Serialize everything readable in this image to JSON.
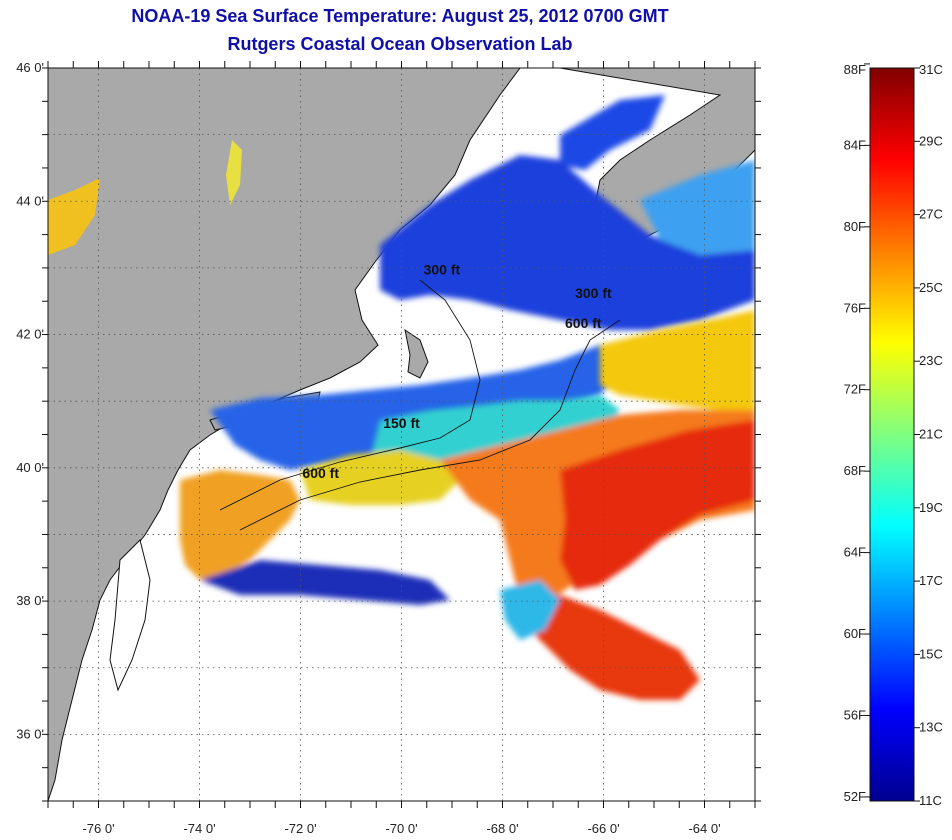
{
  "header": {
    "title_line1": "NOAA-19 Sea Surface Temperature:  August 25, 2012 0700 GMT",
    "title_line2": "Rutgers Coastal Ocean Observation Lab"
  },
  "map": {
    "lat_range": [
      35,
      46
    ],
    "lon_range": [
      -77,
      -63
    ],
    "lat_labels": [
      "46 0'",
      "44 0'",
      "42 0'",
      "40 0'",
      "38 0'",
      "36 0'"
    ],
    "lat_values": [
      46,
      44,
      42,
      40,
      38,
      36
    ],
    "lon_labels": [
      "-76 0'",
      "-74 0'",
      "-72 0'",
      "-70 0'",
      "-68 0'",
      "-66 0'",
      "-64 0'"
    ],
    "lon_values": [
      -76,
      -74,
      -72,
      -70,
      -68,
      -66,
      -64
    ],
    "contour_labels": [
      {
        "text": "150 ft",
        "lon": -70.0,
        "lat": 40.6
      },
      {
        "text": "600 ft",
        "lon": -71.6,
        "lat": 39.85
      },
      {
        "text": "600 ft",
        "lon": -66.4,
        "lat": 42.1
      },
      {
        "text": "300 ft",
        "lon": -66.2,
        "lat": 42.55
      },
      {
        "text": "300 ft",
        "lon": -69.2,
        "lat": 42.9
      }
    ],
    "colors": {
      "land": "#a9a9a9",
      "no_data": "#ffffff",
      "coast": "#111111"
    }
  },
  "colorbar": {
    "fahrenheit_labels": [
      "88F",
      "84F",
      "80F",
      "76F",
      "72F",
      "68F",
      "64F",
      "60F",
      "56F",
      "52F"
    ],
    "celsius_labels": [
      "31C",
      "29C",
      "27C",
      "25C",
      "23C",
      "21C",
      "19C",
      "17C",
      "15C",
      "13C",
      "11C"
    ],
    "range_c": [
      11,
      31
    ]
  }
}
